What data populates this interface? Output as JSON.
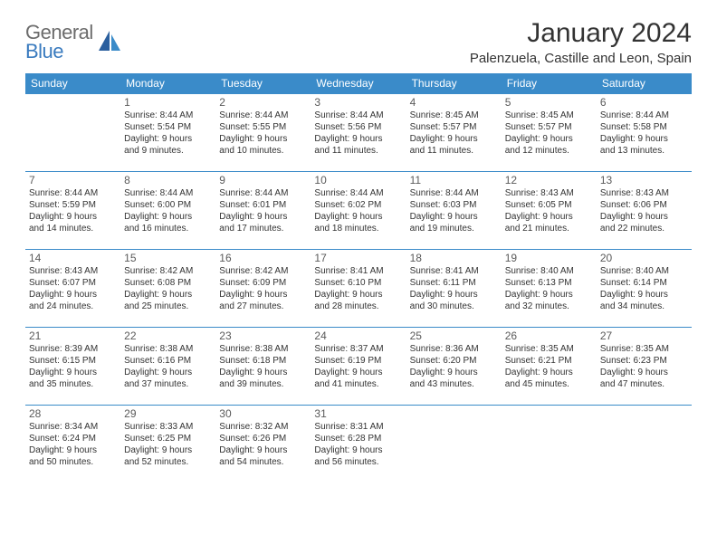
{
  "logo": {
    "word1": "General",
    "word2": "Blue"
  },
  "title": "January 2024",
  "location": "Palenzuela, Castille and Leon, Spain",
  "header_color": "#3a8bc9",
  "row_divider_color": "#3a8bc9",
  "text_color": "#333333",
  "day_headers": [
    "Sunday",
    "Monday",
    "Tuesday",
    "Wednesday",
    "Thursday",
    "Friday",
    "Saturday"
  ],
  "weeks": [
    [
      null,
      {
        "n": "1",
        "sr": "Sunrise: 8:44 AM",
        "ss": "Sunset: 5:54 PM",
        "d1": "Daylight: 9 hours",
        "d2": "and 9 minutes."
      },
      {
        "n": "2",
        "sr": "Sunrise: 8:44 AM",
        "ss": "Sunset: 5:55 PM",
        "d1": "Daylight: 9 hours",
        "d2": "and 10 minutes."
      },
      {
        "n": "3",
        "sr": "Sunrise: 8:44 AM",
        "ss": "Sunset: 5:56 PM",
        "d1": "Daylight: 9 hours",
        "d2": "and 11 minutes."
      },
      {
        "n": "4",
        "sr": "Sunrise: 8:45 AM",
        "ss": "Sunset: 5:57 PM",
        "d1": "Daylight: 9 hours",
        "d2": "and 11 minutes."
      },
      {
        "n": "5",
        "sr": "Sunrise: 8:45 AM",
        "ss": "Sunset: 5:57 PM",
        "d1": "Daylight: 9 hours",
        "d2": "and 12 minutes."
      },
      {
        "n": "6",
        "sr": "Sunrise: 8:44 AM",
        "ss": "Sunset: 5:58 PM",
        "d1": "Daylight: 9 hours",
        "d2": "and 13 minutes."
      }
    ],
    [
      {
        "n": "7",
        "sr": "Sunrise: 8:44 AM",
        "ss": "Sunset: 5:59 PM",
        "d1": "Daylight: 9 hours",
        "d2": "and 14 minutes."
      },
      {
        "n": "8",
        "sr": "Sunrise: 8:44 AM",
        "ss": "Sunset: 6:00 PM",
        "d1": "Daylight: 9 hours",
        "d2": "and 16 minutes."
      },
      {
        "n": "9",
        "sr": "Sunrise: 8:44 AM",
        "ss": "Sunset: 6:01 PM",
        "d1": "Daylight: 9 hours",
        "d2": "and 17 minutes."
      },
      {
        "n": "10",
        "sr": "Sunrise: 8:44 AM",
        "ss": "Sunset: 6:02 PM",
        "d1": "Daylight: 9 hours",
        "d2": "and 18 minutes."
      },
      {
        "n": "11",
        "sr": "Sunrise: 8:44 AM",
        "ss": "Sunset: 6:03 PM",
        "d1": "Daylight: 9 hours",
        "d2": "and 19 minutes."
      },
      {
        "n": "12",
        "sr": "Sunrise: 8:43 AM",
        "ss": "Sunset: 6:05 PM",
        "d1": "Daylight: 9 hours",
        "d2": "and 21 minutes."
      },
      {
        "n": "13",
        "sr": "Sunrise: 8:43 AM",
        "ss": "Sunset: 6:06 PM",
        "d1": "Daylight: 9 hours",
        "d2": "and 22 minutes."
      }
    ],
    [
      {
        "n": "14",
        "sr": "Sunrise: 8:43 AM",
        "ss": "Sunset: 6:07 PM",
        "d1": "Daylight: 9 hours",
        "d2": "and 24 minutes."
      },
      {
        "n": "15",
        "sr": "Sunrise: 8:42 AM",
        "ss": "Sunset: 6:08 PM",
        "d1": "Daylight: 9 hours",
        "d2": "and 25 minutes."
      },
      {
        "n": "16",
        "sr": "Sunrise: 8:42 AM",
        "ss": "Sunset: 6:09 PM",
        "d1": "Daylight: 9 hours",
        "d2": "and 27 minutes."
      },
      {
        "n": "17",
        "sr": "Sunrise: 8:41 AM",
        "ss": "Sunset: 6:10 PM",
        "d1": "Daylight: 9 hours",
        "d2": "and 28 minutes."
      },
      {
        "n": "18",
        "sr": "Sunrise: 8:41 AM",
        "ss": "Sunset: 6:11 PM",
        "d1": "Daylight: 9 hours",
        "d2": "and 30 minutes."
      },
      {
        "n": "19",
        "sr": "Sunrise: 8:40 AM",
        "ss": "Sunset: 6:13 PM",
        "d1": "Daylight: 9 hours",
        "d2": "and 32 minutes."
      },
      {
        "n": "20",
        "sr": "Sunrise: 8:40 AM",
        "ss": "Sunset: 6:14 PM",
        "d1": "Daylight: 9 hours",
        "d2": "and 34 minutes."
      }
    ],
    [
      {
        "n": "21",
        "sr": "Sunrise: 8:39 AM",
        "ss": "Sunset: 6:15 PM",
        "d1": "Daylight: 9 hours",
        "d2": "and 35 minutes."
      },
      {
        "n": "22",
        "sr": "Sunrise: 8:38 AM",
        "ss": "Sunset: 6:16 PM",
        "d1": "Daylight: 9 hours",
        "d2": "and 37 minutes."
      },
      {
        "n": "23",
        "sr": "Sunrise: 8:38 AM",
        "ss": "Sunset: 6:18 PM",
        "d1": "Daylight: 9 hours",
        "d2": "and 39 minutes."
      },
      {
        "n": "24",
        "sr": "Sunrise: 8:37 AM",
        "ss": "Sunset: 6:19 PM",
        "d1": "Daylight: 9 hours",
        "d2": "and 41 minutes."
      },
      {
        "n": "25",
        "sr": "Sunrise: 8:36 AM",
        "ss": "Sunset: 6:20 PM",
        "d1": "Daylight: 9 hours",
        "d2": "and 43 minutes."
      },
      {
        "n": "26",
        "sr": "Sunrise: 8:35 AM",
        "ss": "Sunset: 6:21 PM",
        "d1": "Daylight: 9 hours",
        "d2": "and 45 minutes."
      },
      {
        "n": "27",
        "sr": "Sunrise: 8:35 AM",
        "ss": "Sunset: 6:23 PM",
        "d1": "Daylight: 9 hours",
        "d2": "and 47 minutes."
      }
    ],
    [
      {
        "n": "28",
        "sr": "Sunrise: 8:34 AM",
        "ss": "Sunset: 6:24 PM",
        "d1": "Daylight: 9 hours",
        "d2": "and 50 minutes."
      },
      {
        "n": "29",
        "sr": "Sunrise: 8:33 AM",
        "ss": "Sunset: 6:25 PM",
        "d1": "Daylight: 9 hours",
        "d2": "and 52 minutes."
      },
      {
        "n": "30",
        "sr": "Sunrise: 8:32 AM",
        "ss": "Sunset: 6:26 PM",
        "d1": "Daylight: 9 hours",
        "d2": "and 54 minutes."
      },
      {
        "n": "31",
        "sr": "Sunrise: 8:31 AM",
        "ss": "Sunset: 6:28 PM",
        "d1": "Daylight: 9 hours",
        "d2": "and 56 minutes."
      },
      null,
      null,
      null
    ]
  ]
}
